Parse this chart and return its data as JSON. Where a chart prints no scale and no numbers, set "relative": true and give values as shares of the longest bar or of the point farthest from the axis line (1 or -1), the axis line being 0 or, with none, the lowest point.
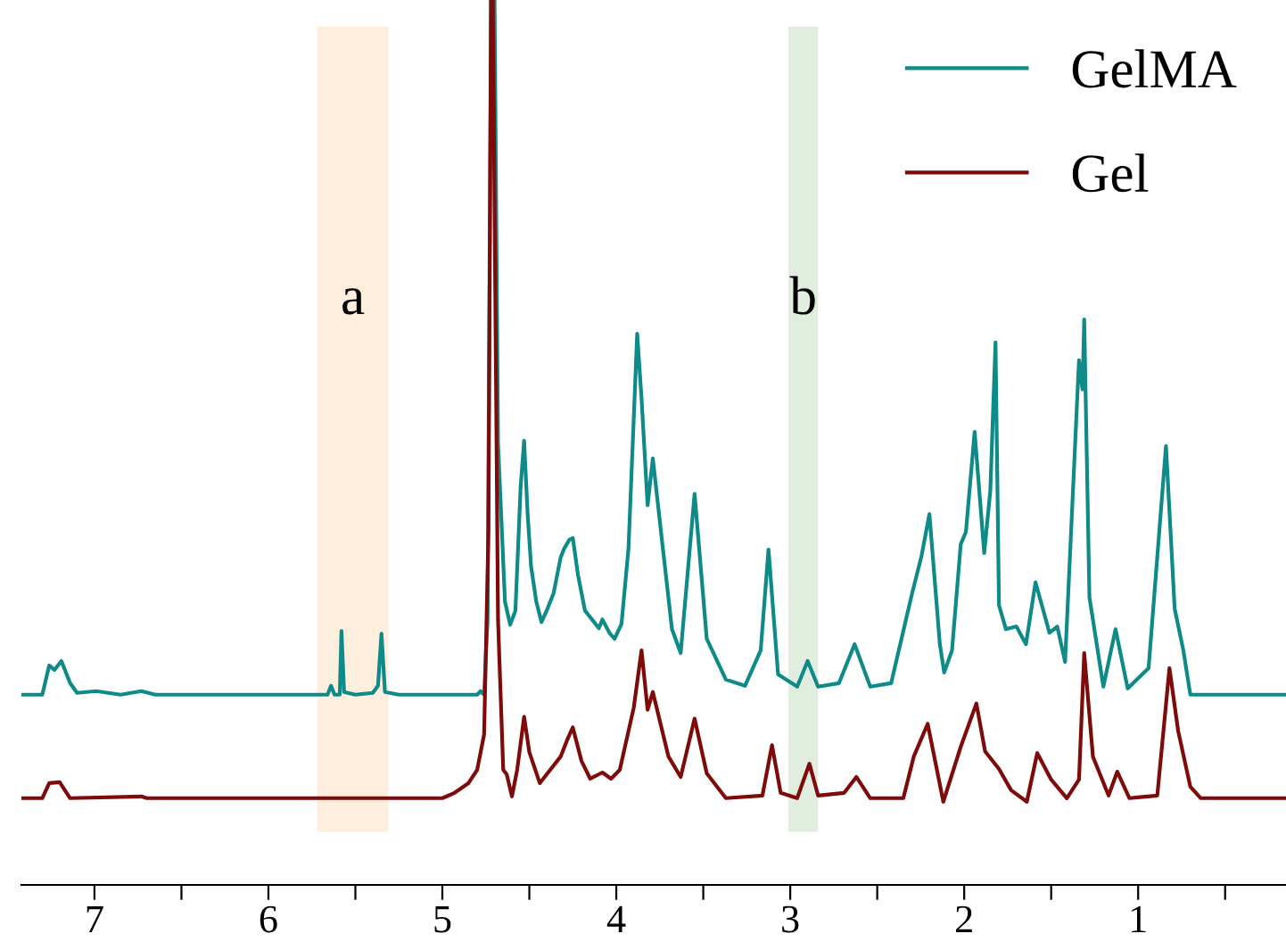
{
  "chart_data": {
    "type": "line",
    "relative": true,
    "tick_labels": "x",
    "grid": false,
    "legend": "top right",
    "xlim": [
      7.42,
      0.15
    ],
    "xticks": [
      7,
      {
        "value": 6.5,
        "label": null
      },
      6,
      {
        "value": 5.5,
        "label": null
      },
      5,
      {
        "value": 4.5,
        "label": null
      },
      4,
      {
        "value": 3.5,
        "label": null
      },
      3,
      {
        "value": 2.5,
        "label": null
      },
      2,
      {
        "value": 1.5,
        "label": null
      },
      1,
      {
        "value": 0.5,
        "label": null
      }
    ],
    "bands": [
      {
        "axis": "x",
        "from": 5.72,
        "to": 5.31,
        "color": "#fdeedd"
      },
      {
        "axis": "x",
        "from": 3.01,
        "to": 2.84,
        "color": "#e1eedf"
      }
    ],
    "annotations": [
      "a",
      "b"
    ],
    "series": [
      {
        "name": "GelMA",
        "color": "#0e8a88",
        "x": [
          7.42,
          7.3,
          7.26,
          7.23,
          7.19,
          7.14,
          7.1,
          6.99,
          6.85,
          6.73,
          6.65,
          5.66,
          5.64,
          5.62,
          5.59,
          5.58,
          5.565,
          5.5,
          5.4,
          5.37,
          5.35,
          5.33,
          5.25,
          4.8,
          4.78,
          4.76,
          4.74,
          4.72,
          4.7,
          4.68,
          4.64,
          4.61,
          4.58,
          4.55,
          4.53,
          4.51,
          4.49,
          4.46,
          4.43,
          4.4,
          4.36,
          4.32,
          4.3,
          4.27,
          4.25,
          4.22,
          4.18,
          4.14,
          4.1,
          4.08,
          4.04,
          4.01,
          3.97,
          3.93,
          3.88,
          3.855,
          3.82,
          3.79,
          3.735,
          3.68,
          3.63,
          3.55,
          3.48,
          3.37,
          3.26,
          3.17,
          3.125,
          3.07,
          2.96,
          2.9,
          2.84,
          2.72,
          2.63,
          2.54,
          2.42,
          2.3,
          2.245,
          2.2,
          2.14,
          2.115,
          2.07,
          2.02,
          1.99,
          1.94,
          1.885,
          1.85,
          1.82,
          1.8,
          1.76,
          1.7,
          1.645,
          1.59,
          1.51,
          1.465,
          1.42,
          1.34,
          1.32,
          1.31,
          1.28,
          1.2,
          1.13,
          1.06,
          0.94,
          0.84,
          0.79,
          0.74,
          0.7,
          0.15
        ],
        "values": [
          0.215,
          0.215,
          0.248,
          0.243,
          0.253,
          0.228,
          0.217,
          0.219,
          0.215,
          0.219,
          0.215,
          0.215,
          0.225,
          0.215,
          0.215,
          0.287,
          0.218,
          0.215,
          0.217,
          0.225,
          0.284,
          0.218,
          0.215,
          0.215,
          0.219,
          0.215,
          0.3,
          1.0,
          1.0,
          0.5,
          0.32,
          0.294,
          0.31,
          0.45,
          0.502,
          0.42,
          0.36,
          0.32,
          0.297,
          0.31,
          0.33,
          0.37,
          0.38,
          0.39,
          0.392,
          0.35,
          0.31,
          0.3,
          0.29,
          0.3,
          0.285,
          0.278,
          0.295,
          0.38,
          0.623,
          0.55,
          0.429,
          0.482,
          0.385,
          0.289,
          0.262,
          0.442,
          0.278,
          0.232,
          0.225,
          0.265,
          0.379,
          0.238,
          0.224,
          0.253,
          0.224,
          0.228,
          0.272,
          0.224,
          0.228,
          0.329,
          0.372,
          0.419,
          0.272,
          0.24,
          0.265,
          0.385,
          0.399,
          0.512,
          0.375,
          0.445,
          0.613,
          0.316,
          0.289,
          0.292,
          0.272,
          0.342,
          0.285,
          0.292,
          0.252,
          0.593,
          0.56,
          0.639,
          0.325,
          0.224,
          0.289,
          0.222,
          0.245,
          0.496,
          0.312,
          0.265,
          0.215,
          0.215
        ]
      },
      {
        "name": "Gel",
        "color": "#7f0a0a",
        "x": [
          7.42,
          7.3,
          7.26,
          7.2,
          7.14,
          6.73,
          6.7,
          5.0,
          4.93,
          4.85,
          4.8,
          4.76,
          4.735,
          4.72,
          4.71,
          4.68,
          4.65,
          4.63,
          4.6,
          4.57,
          4.53,
          4.5,
          4.44,
          4.38,
          4.32,
          4.28,
          4.25,
          4.2,
          4.15,
          4.08,
          4.03,
          3.98,
          3.9,
          3.855,
          3.82,
          3.79,
          3.7,
          3.63,
          3.55,
          3.48,
          3.37,
          3.16,
          3.105,
          3.055,
          2.96,
          2.89,
          2.84,
          2.69,
          2.62,
          2.54,
          2.35,
          2.29,
          2.21,
          2.12,
          2.02,
          1.93,
          1.88,
          1.8,
          1.73,
          1.64,
          1.58,
          1.5,
          1.41,
          1.34,
          1.31,
          1.26,
          1.17,
          1.12,
          1.05,
          0.89,
          0.82,
          0.77,
          0.7,
          0.64,
          0.15
        ],
        "values": [
          0.098,
          0.098,
          0.115,
          0.116,
          0.098,
          0.1,
          0.098,
          0.098,
          0.104,
          0.115,
          0.13,
          0.17,
          0.4,
          1.0,
          1.0,
          0.3,
          0.13,
          0.125,
          0.1,
          0.13,
          0.19,
          0.15,
          0.115,
          0.13,
          0.145,
          0.165,
          0.178,
          0.14,
          0.12,
          0.127,
          0.12,
          0.13,
          0.2,
          0.265,
          0.198,
          0.218,
          0.145,
          0.122,
          0.188,
          0.126,
          0.098,
          0.101,
          0.158,
          0.104,
          0.098,
          0.137,
          0.101,
          0.104,
          0.122,
          0.098,
          0.098,
          0.145,
          0.182,
          0.094,
          0.156,
          0.205,
          0.151,
          0.131,
          0.107,
          0.094,
          0.149,
          0.119,
          0.098,
          0.119,
          0.262,
          0.145,
          0.101,
          0.128,
          0.098,
          0.101,
          0.245,
          0.174,
          0.111,
          0.098,
          0.098
        ]
      }
    ]
  }
}
